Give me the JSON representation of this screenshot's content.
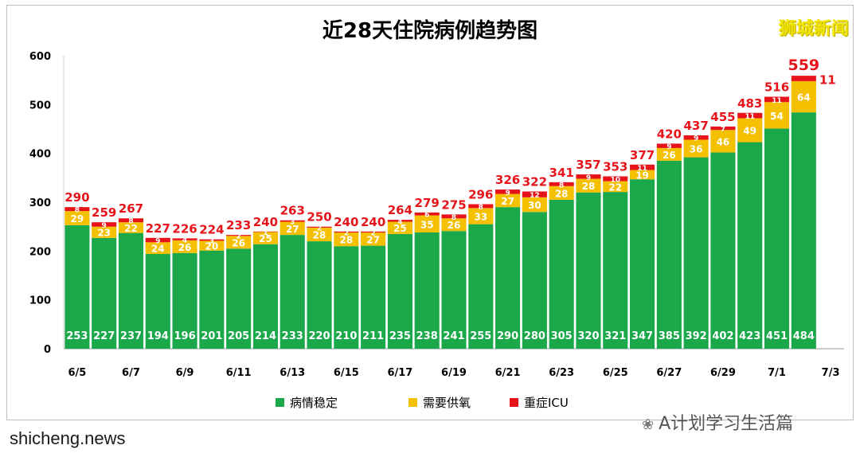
{
  "logo_text": "狮城新闻",
  "wechat_label": "A计划学习生活篇",
  "watermark": "shicheng.news",
  "chart_data": {
    "type": "bar",
    "stacked": true,
    "title": "近28天住院病例趋势图",
    "ylim": [
      0,
      600
    ],
    "yticks": [
      0,
      100,
      200,
      300,
      400,
      500,
      600
    ],
    "grid": false,
    "legend_position": "bottom",
    "x_tick_labels": [
      "6/5",
      "6/7",
      "6/9",
      "6/11",
      "6/13",
      "6/15",
      "6/17",
      "6/19",
      "6/21",
      "6/23",
      "6/25",
      "6/27",
      "6/29",
      "7/1",
      "7/3"
    ],
    "categories": [
      "6/5",
      "6/6",
      "6/7",
      "6/8",
      "6/9",
      "6/10",
      "6/11",
      "6/12",
      "6/13",
      "6/14",
      "6/15",
      "6/16",
      "6/17",
      "6/18",
      "6/19",
      "6/20",
      "6/21",
      "6/22",
      "6/23",
      "6/24",
      "6/25",
      "6/26",
      "6/27",
      "6/28",
      "6/29",
      "6/30",
      "7/1",
      "7/2"
    ],
    "series": [
      {
        "name": "病情稳定",
        "color": "#1aa84a",
        "values": [
          253,
          227,
          237,
          194,
          196,
          201,
          205,
          214,
          233,
          220,
          210,
          211,
          235,
          238,
          241,
          255,
          290,
          280,
          305,
          320,
          321,
          347,
          385,
          392,
          402,
          423,
          451,
          484
        ]
      },
      {
        "name": "需要供氧",
        "color": "#f5c000",
        "values": [
          29,
          23,
          22,
          24,
          26,
          20,
          26,
          25,
          27,
          28,
          28,
          27,
          25,
          35,
          26,
          33,
          27,
          30,
          28,
          28,
          22,
          19,
          26,
          36,
          46,
          49,
          54,
          64
        ]
      },
      {
        "name": "重症ICU",
        "color": "#e6131a",
        "values": [
          8,
          9,
          8,
          9,
          4,
          3,
          2,
          1,
          3,
          2,
          2,
          2,
          4,
          6,
          8,
          8,
          9,
          12,
          8,
          9,
          10,
          11,
          9,
          9,
          7,
          11,
          11,
          11
        ]
      }
    ],
    "totals": [
      290,
      259,
      267,
      227,
      226,
      224,
      233,
      240,
      263,
      250,
      240,
      240,
      264,
      279,
      275,
      296,
      326,
      322,
      341,
      357,
      353,
      377,
      420,
      437,
      455,
      483,
      516,
      559
    ]
  }
}
